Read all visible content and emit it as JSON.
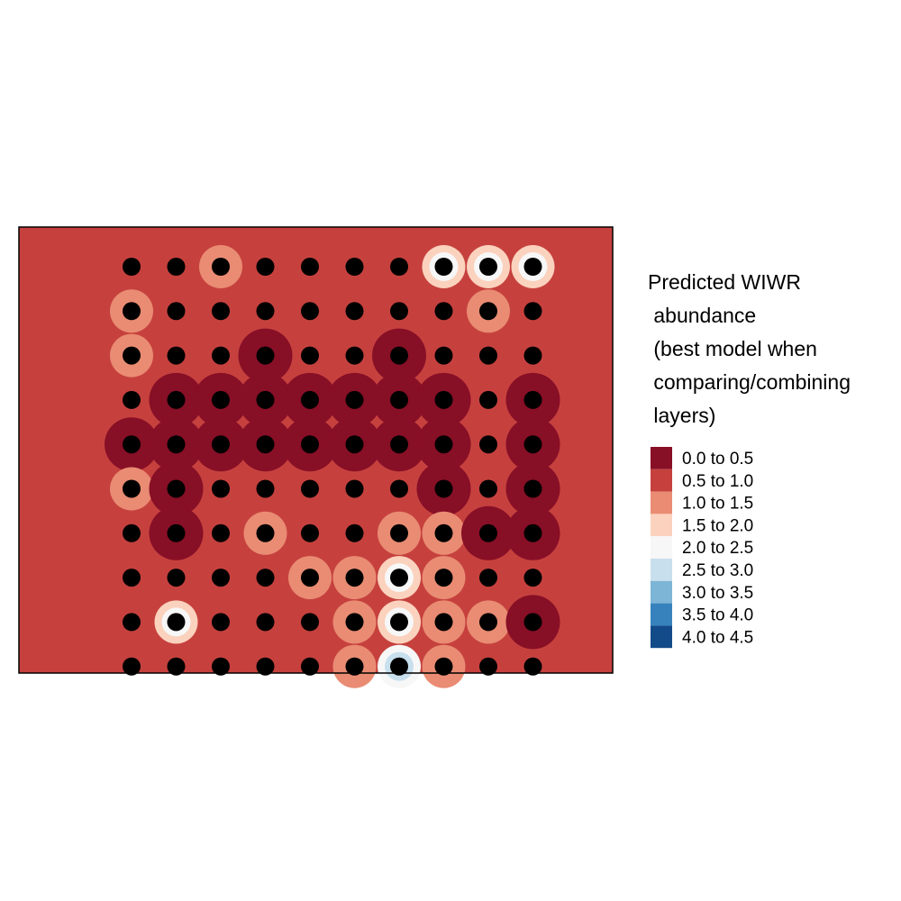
{
  "chart_data": {
    "type": "heatmap",
    "legend": {
      "title_lines": [
        "Predicted WIWR",
        " abundance",
        " (best model when",
        " comparing/combining",
        " layers)"
      ],
      "placement": "right",
      "classes": [
        {
          "label": "0.0 to 0.5",
          "color": "#870f26"
        },
        {
          "label": "0.5 to 1.0",
          "color": "#c6413e"
        },
        {
          "label": "1.0 to 1.5",
          "color": "#e98c73"
        },
        {
          "label": "1.5 to 2.0",
          "color": "#fbd2bd"
        },
        {
          "label": "2.0 to 2.5",
          "color": "#f7f7f7"
        },
        {
          "label": "2.5 to 3.0",
          "color": "#c8dfed"
        },
        {
          "label": "3.0 to 3.5",
          "color": "#7db5d7"
        },
        {
          "label": "3.5 to 4.0",
          "color": "#3782bc"
        },
        {
          "label": "4.0 to 4.5",
          "color": "#134b89"
        }
      ]
    },
    "grid": false,
    "background_class": "0.5 to 1.0",
    "survey_points": {
      "color": "#000000",
      "columns": 10,
      "rows": 10
    },
    "class_grid": [
      "1121111333",
      "2111111121",
      "2110110111",
      "1000000010",
      "0000000010",
      "2011111010",
      "1012112200",
      "1111223211",
      "1311123220",
      "1111124211"
    ]
  }
}
